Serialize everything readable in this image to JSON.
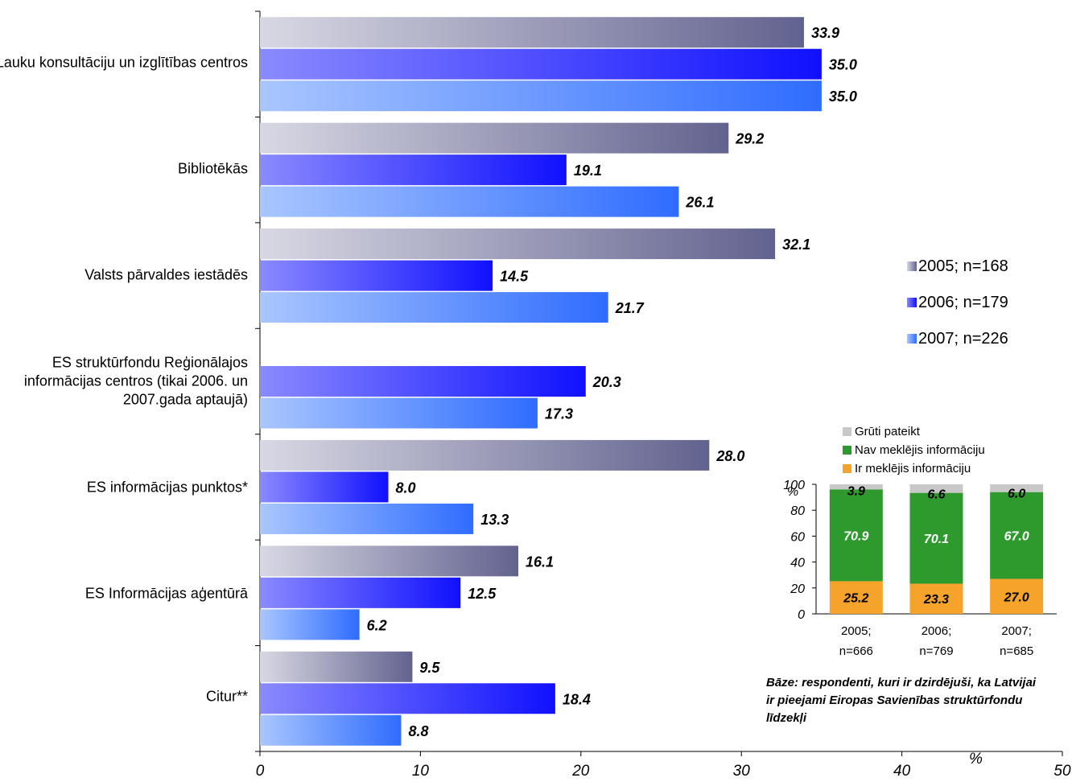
{
  "chart_data": [
    {
      "type": "bar",
      "orientation": "horizontal",
      "categories": [
        "Lauku konsultāciju un izglītības centros",
        "Bibliotēkās",
        "Valsts pārvaldes iestādēs",
        "ES struktūrfondu Reģionālajos informācijas centros (tikai 2006. un 2007.gada aptaujā)",
        "ES informācijas punktos*",
        "ES Informācijas aģentūrā",
        "Citur**"
      ],
      "series": [
        {
          "name": "2005; n=168",
          "values": [
            33.9,
            29.2,
            32.1,
            null,
            28.0,
            16.1,
            9.5
          ],
          "labels": [
            "33.9",
            "29.2",
            "32.1",
            "",
            "28.0",
            "16.1",
            "9.5"
          ],
          "color": "#6a6a9a"
        },
        {
          "name": "2006; n=179",
          "values": [
            35.0,
            19.1,
            14.5,
            20.3,
            8.0,
            12.5,
            18.4
          ],
          "labels": [
            "35.0",
            "19.1",
            "14.5",
            "20.3",
            "8.0",
            "12.5",
            "18.4"
          ],
          "color": "#1a1aff"
        },
        {
          "name": "2007; n=226",
          "values": [
            35.0,
            26.1,
            21.7,
            17.3,
            13.3,
            6.2,
            8.8
          ],
          "labels": [
            "35.0",
            "26.1",
            "21.7",
            "17.3",
            "13.3",
            "6.2",
            "8.8"
          ],
          "color": "#3a78ff"
        }
      ],
      "xlim": [
        0,
        50
      ],
      "xticks": [
        "0",
        "10",
        "20",
        "30",
        "40",
        "50"
      ],
      "xlabel": "%",
      "legend_position": "right"
    },
    {
      "type": "bar",
      "stacked": true,
      "categories": [
        "2005; n=666",
        "2006; n=769",
        "2007; n=685"
      ],
      "series": [
        {
          "name": "Ir meklējis informāciju",
          "values": [
            25.2,
            23.3,
            27.0
          ],
          "labels": [
            "25.2",
            "23.3",
            "27.0"
          ],
          "color": "#f5a32a"
        },
        {
          "name": "Nav meklējis informāciju",
          "values": [
            70.9,
            70.1,
            67.0
          ],
          "labels": [
            "70.9",
            "70.1",
            "67.0"
          ],
          "color": "#2e9a2e"
        },
        {
          "name": "Grūti pateikt",
          "values": [
            3.9,
            6.6,
            6.0
          ],
          "labels": [
            "3.9",
            "6.6",
            "6.0"
          ],
          "color": "#c8c8c8"
        }
      ],
      "ylim": [
        0,
        100
      ],
      "yticks": [
        "0",
        "20",
        "40",
        "60",
        "80",
        "100"
      ],
      "ylabel": "%",
      "legend_order": [
        "Grūti pateikt",
        "Nav meklējis informāciju",
        "Ir meklējis informāciju"
      ],
      "note": "Bāze: respondenti, kuri ir dzirdējuši, ka Latvijai ir pieejami Eiropas Savienības struktūrfondu līdzekļi"
    }
  ]
}
